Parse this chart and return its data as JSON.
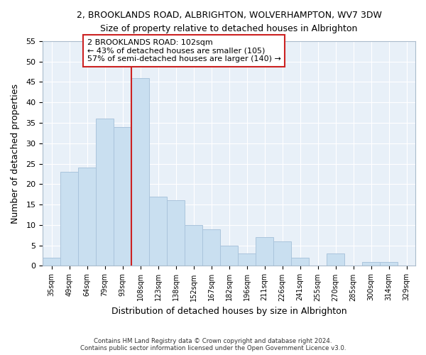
{
  "title": "2, BROOKLANDS ROAD, ALBRIGHTON, WOLVERHAMPTON, WV7 3DW",
  "subtitle": "Size of property relative to detached houses in Albrighton",
  "xlabel": "Distribution of detached houses by size in Albrighton",
  "ylabel": "Number of detached properties",
  "bar_labels": [
    "35sqm",
    "49sqm",
    "64sqm",
    "79sqm",
    "93sqm",
    "108sqm",
    "123sqm",
    "138sqm",
    "152sqm",
    "167sqm",
    "182sqm",
    "196sqm",
    "211sqm",
    "226sqm",
    "241sqm",
    "255sqm",
    "270sqm",
    "285sqm",
    "300sqm",
    "314sqm",
    "329sqm"
  ],
  "bar_values": [
    2,
    23,
    24,
    36,
    34,
    46,
    17,
    16,
    10,
    9,
    5,
    3,
    7,
    6,
    2,
    0,
    3,
    0,
    1,
    1,
    0
  ],
  "bar_color": "#c9dff0",
  "bar_edge_color": "#aac4dc",
  "annotation_title": "2 BROOKLANDS ROAD: 102sqm",
  "annotation_line1": "← 43% of detached houses are smaller (105)",
  "annotation_line2": "57% of semi-detached houses are larger (140) →",
  "annotation_box_color": "#ffffff",
  "annotation_box_edge": "#cc2222",
  "line_color": "#cc2222",
  "plot_bg_color": "#e8f0f8",
  "ylim": [
    0,
    55
  ],
  "yticks": [
    0,
    5,
    10,
    15,
    20,
    25,
    30,
    35,
    40,
    45,
    50,
    55
  ],
  "footer1": "Contains HM Land Registry data © Crown copyright and database right 2024.",
  "footer2": "Contains public sector information licensed under the Open Government Licence v3.0."
}
